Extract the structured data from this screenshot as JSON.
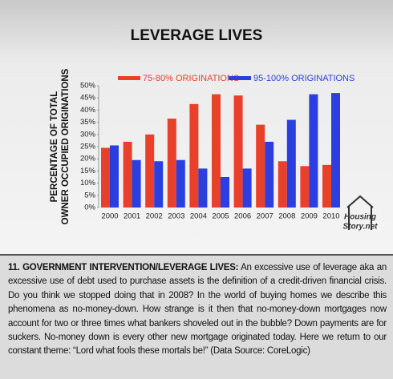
{
  "chart_data": {
    "type": "bar",
    "title": "LEVERAGE LIVES",
    "ylabel": [
      "PERCENTAGE OF TOTAL",
      "OWNER OCCUPIED ORIGINATIONS"
    ],
    "categories": [
      "2000",
      "2001",
      "2002",
      "2003",
      "2004",
      "2005",
      "2006",
      "2007",
      "2008",
      "2009",
      "2010"
    ],
    "series": [
      {
        "name": "75-80% ORIGINATIONS",
        "color": "#e8402a",
        "values": [
          24.5,
          27,
          30,
          36.5,
          42.5,
          46.5,
          46,
          34,
          19,
          17,
          17.5
        ]
      },
      {
        "name": "95-100% ORIGINATIONS",
        "color": "#2b3fe0",
        "values": [
          25.5,
          19.5,
          19,
          19.5,
          16,
          12.5,
          16,
          27,
          36,
          46.5,
          47
        ]
      }
    ],
    "ylim": [
      0,
      50
    ],
    "yticks": [
      {
        "value": 0,
        "label": "0%"
      },
      {
        "value": 5,
        "label": "5%"
      },
      {
        "value": 10,
        "label": "10%"
      },
      {
        "value": 15,
        "label": "15%"
      },
      {
        "value": 20,
        "label": "20%"
      },
      {
        "value": 25,
        "label": "25%"
      },
      {
        "value": 30,
        "label": "30%"
      },
      {
        "value": 35,
        "label": "35%"
      },
      {
        "value": 40,
        "label": "40%"
      },
      {
        "value": 45,
        "label": "45%"
      },
      {
        "value": 50,
        "label": "50%"
      }
    ],
    "grid": false
  },
  "logo": {
    "line1": "Housing",
    "line2": "Story.net"
  },
  "caption": {
    "heading": "11. GOVERNMENT INTERVENTION/LEVERAGE LIVES:",
    "body": "An excessive use of leverage aka an excessive use of debt used to purchase assets is the definition of a credit-driven financial crisis. Do you think we stopped doing that in 2008? In the world of buying homes we describe this phenomena as no-money-down. How strange is it then that no-money-down mortgages now account for two or three times what bankers shoveled out in the bubble? Down payments are for suckers. No-money down is every other new mortgage originated today. Here we return to our constant theme: “Lord what fools these mortals be!” (Data Source: CoreLogic)"
  }
}
